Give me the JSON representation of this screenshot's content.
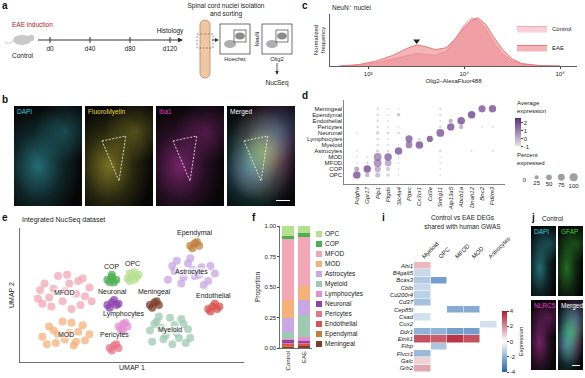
{
  "diagram": {
    "a": {
      "letter": "a",
      "arms": [
        "EAE induction",
        "Control"
      ],
      "timeline": [
        "d0",
        "d40",
        "d80",
        "d120"
      ],
      "endpoint": "Histology",
      "sorting_title": "Spinal cord nuclei isolation and sorting",
      "gates": [
        {
          "x_label": "Hoechst"
        },
        {
          "x_label": "Olig2",
          "y_label": "NeuN"
        }
      ],
      "output": "NucSeq"
    },
    "b": {
      "letter": "b",
      "channels": [
        {
          "label": "DAPI",
          "color": "#3fd0e0"
        },
        {
          "label": "FluoroMyelin",
          "color": "#e6dc3c"
        },
        {
          "label": "Iba1",
          "color": "#e040c8"
        },
        {
          "label": "Merged",
          "color": "#ffffff"
        }
      ]
    },
    "j": {
      "letter": "j",
      "condition": "Control",
      "channels": [
        {
          "label": "DAPI",
          "color": "#3fd0e0"
        },
        {
          "label": "GFAP",
          "color": "#40d040"
        },
        {
          "label": "NLRC5",
          "color": "#e040c8"
        },
        {
          "label": "Merged",
          "color": "#ffffff"
        }
      ]
    }
  },
  "chart_data": [
    {
      "panel": "c",
      "type": "area",
      "title": "NeuN⁻ nuclei",
      "x_label": "Olig2–AlexaFluor488",
      "y_label": "Normalized frequency",
      "log": "x",
      "tick_labels": "x",
      "legend": "top-right",
      "x": [
        500,
        800,
        1200,
        1800,
        2500,
        3200,
        4000,
        5000,
        6500,
        8000,
        10000,
        12000,
        14000,
        17000,
        20000,
        25000,
        32000,
        40000,
        60000,
        100000
      ],
      "series": [
        {
          "name": "Control",
          "color": "#f4a9b8",
          "values": [
            0,
            2,
            6,
            14,
            22,
            26,
            24,
            22,
            30,
            55,
            85,
            100,
            95,
            75,
            50,
            25,
            10,
            4,
            1,
            0
          ]
        },
        {
          "name": "EAE",
          "color": "#e9787c",
          "values": [
            0,
            3,
            10,
            22,
            36,
            44,
            40,
            34,
            38,
            55,
            80,
            95,
            100,
            85,
            62,
            35,
            14,
            5,
            1,
            0
          ]
        }
      ],
      "xlim": [
        400,
        150000
      ],
      "xticks": [
        {
          "value": 1000,
          "label": "10³"
        },
        {
          "value": 10000,
          "label": "10⁴"
        },
        {
          "value": 100000,
          "label": "10⁵"
        }
      ],
      "ylim": [
        0,
        108
      ],
      "arrow_at": {
        "x": 3200,
        "y": 52
      }
    },
    {
      "panel": "d",
      "type": "dot",
      "color": "#5e2a84",
      "x": [
        "Pdgfra",
        "Gpr17",
        "Plp1",
        "Ptgds",
        "Slc4a4",
        "Ptprc",
        "Cx3cr1",
        "Cd3e",
        "Snhg11",
        "Atp13a5",
        "Abcb1a",
        "Dnah12",
        "Bnc2",
        "Pdlim3"
      ],
      "categories": [
        "OPC",
        "COP",
        "MFOD",
        "MOD",
        "Astrocytes",
        "Myeloid",
        "Lymphocytes",
        "Neuronal",
        "Pericytes",
        "Endothelial",
        "Ependymal",
        "Meningeal"
      ],
      "percent": [
        [
          90,
          30,
          40,
          20,
          5,
          0,
          0,
          0,
          5,
          0,
          0,
          0,
          0,
          0
        ],
        [
          40,
          85,
          60,
          30,
          5,
          0,
          0,
          0,
          5,
          0,
          0,
          0,
          0,
          0
        ],
        [
          5,
          10,
          95,
          70,
          5,
          0,
          0,
          0,
          5,
          0,
          0,
          0,
          0,
          0
        ],
        [
          5,
          5,
          95,
          90,
          5,
          0,
          0,
          0,
          5,
          0,
          0,
          0,
          0,
          0
        ],
        [
          5,
          0,
          20,
          10,
          90,
          0,
          0,
          0,
          10,
          0,
          0,
          5,
          0,
          5
        ],
        [
          0,
          0,
          10,
          5,
          5,
          70,
          90,
          0,
          0,
          0,
          0,
          0,
          0,
          0
        ],
        [
          0,
          0,
          10,
          5,
          0,
          80,
          10,
          60,
          0,
          0,
          0,
          0,
          0,
          0
        ],
        [
          5,
          0,
          20,
          10,
          10,
          0,
          0,
          0,
          95,
          0,
          0,
          0,
          0,
          0
        ],
        [
          0,
          0,
          10,
          5,
          5,
          0,
          0,
          0,
          10,
          85,
          30,
          0,
          5,
          5
        ],
        [
          0,
          0,
          10,
          5,
          0,
          0,
          0,
          0,
          5,
          30,
          90,
          0,
          0,
          0
        ],
        [
          0,
          0,
          10,
          5,
          20,
          0,
          0,
          0,
          10,
          0,
          0,
          90,
          0,
          0
        ],
        [
          0,
          0,
          10,
          5,
          5,
          0,
          0,
          0,
          10,
          0,
          0,
          0,
          80,
          85
        ]
      ],
      "average": [
        [
          2.3,
          0.4,
          0.2,
          -0.3,
          -0.5,
          -0.6,
          -0.6,
          -0.6,
          -0.5,
          -0.6,
          -0.6,
          -0.6,
          -0.6,
          -0.6
        ],
        [
          0.8,
          2.4,
          0.5,
          -0.2,
          -0.5,
          -0.6,
          -0.6,
          -0.6,
          -0.5,
          -0.6,
          -0.6,
          -0.6,
          -0.6,
          -0.6
        ],
        [
          -0.5,
          -0.3,
          1.2,
          0.6,
          -0.5,
          -0.6,
          -0.6,
          -0.6,
          -0.5,
          -0.6,
          -0.6,
          -0.6,
          -0.6,
          -0.6
        ],
        [
          -0.5,
          -0.5,
          1.3,
          1.9,
          -0.5,
          -0.6,
          -0.6,
          -0.6,
          -0.5,
          -0.6,
          -0.6,
          -0.6,
          -0.6,
          -0.6
        ],
        [
          -0.5,
          -0.6,
          -0.4,
          -0.4,
          2.2,
          -0.6,
          -0.6,
          -0.6,
          -0.4,
          -0.6,
          -0.6,
          -0.4,
          -0.6,
          -0.4
        ],
        [
          -0.6,
          -0.6,
          -0.5,
          -0.5,
          -0.5,
          1.6,
          2.3,
          -0.6,
          -0.6,
          -0.6,
          -0.6,
          -0.6,
          -0.6,
          -0.6
        ],
        [
          -0.6,
          -0.6,
          -0.5,
          -0.5,
          -0.6,
          2.0,
          -0.2,
          2.4,
          -0.6,
          -0.6,
          -0.6,
          -0.6,
          -0.6,
          -0.6
        ],
        [
          -0.5,
          -0.6,
          -0.4,
          -0.4,
          -0.4,
          -0.6,
          -0.6,
          -0.6,
          2.2,
          -0.6,
          -0.6,
          -0.6,
          -0.6,
          -0.6
        ],
        [
          -0.6,
          -0.6,
          -0.5,
          -0.5,
          -0.5,
          -0.6,
          -0.6,
          -0.6,
          -0.4,
          2.3,
          0.5,
          -0.6,
          -0.5,
          -0.4
        ],
        [
          -0.6,
          -0.6,
          -0.5,
          -0.5,
          -0.6,
          -0.6,
          -0.6,
          -0.6,
          -0.5,
          0.6,
          2.4,
          -0.6,
          -0.6,
          -0.6
        ],
        [
          -0.6,
          -0.6,
          -0.5,
          -0.5,
          0.0,
          -0.6,
          -0.6,
          -0.6,
          -0.4,
          -0.6,
          -0.6,
          2.5,
          -0.6,
          -0.6
        ],
        [
          -0.6,
          -0.6,
          -0.5,
          -0.5,
          -0.5,
          -0.6,
          -0.6,
          -0.6,
          -0.4,
          -0.6,
          -0.6,
          -0.6,
          2.2,
          2.3
        ]
      ],
      "colorbar": {
        "title": "Average expression",
        "range": [
          -1,
          2.5
        ],
        "ticks": [
          -1,
          0,
          1,
          2
        ]
      },
      "size_legend": {
        "title": "Percent expressed",
        "values": [
          0,
          25,
          50,
          75,
          100
        ]
      }
    },
    {
      "panel": "e",
      "type": "scatter",
      "title": "Integrated NucSeq dataset",
      "x_label": "UMAP 1",
      "y_label": "UMAP 2",
      "tick_labels": false,
      "xlim": [
        0,
        10
      ],
      "ylim": [
        0,
        10.6
      ],
      "series": [
        {
          "name": "MFOD",
          "color": "#f3a6b5",
          "x": [
            0.8,
            1.1,
            1.4,
            1.7,
            2.0,
            2.3,
            2.6,
            2.9,
            3.2,
            1.0,
            1.5,
            2.1,
            2.7,
            3.1,
            1.3,
            1.9,
            2.5,
            0.9,
            2.2,
            2.8
          ],
          "y": [
            5.0,
            6.2,
            4.4,
            6.8,
            5.6,
            4.2,
            6.4,
            5.2,
            4.8,
            4.6,
            5.8,
            6.9,
            4.5,
            5.9,
            5.1,
            4.8,
            5.4,
            5.7,
            6.2,
            6.6
          ]
        },
        {
          "name": "MOD",
          "color": "#f6b07a",
          "x": [
            1.0,
            1.3,
            1.6,
            1.9,
            2.2,
            2.5,
            2.8,
            3.1,
            1.2,
            1.7,
            2.3,
            2.9,
            1.5,
            2.0,
            2.6,
            2.4
          ],
          "y": [
            2.0,
            2.8,
            1.5,
            3.2,
            2.3,
            1.6,
            2.9,
            2.2,
            1.4,
            2.2,
            3.1,
            1.7,
            2.5,
            1.8,
            2.4,
            1.3
          ]
        },
        {
          "name": "COP",
          "color": "#4caf50",
          "x": [
            3.9,
            4.1,
            4.3,
            4.0,
            4.2,
            4.1
          ],
          "y": [
            6.5,
            6.7,
            6.5,
            6.3,
            6.3,
            6.9
          ]
        },
        {
          "name": "OPC",
          "color": "#b5e08f",
          "x": [
            4.8,
            5.0,
            5.2,
            4.9,
            5.1,
            5.3,
            4.9,
            5.1
          ],
          "y": [
            6.6,
            6.8,
            6.7,
            6.4,
            6.5,
            6.9,
            7.0,
            7.1
          ]
        },
        {
          "name": "Astrocytes",
          "color": "#c9a6e4",
          "x": [
            6.6,
            6.9,
            7.2,
            7.5,
            7.8,
            8.1,
            8.4,
            8.7,
            6.8,
            7.3,
            7.7,
            8.2,
            8.5,
            7.0,
            7.6,
            8.0
          ],
          "y": [
            6.5,
            7.2,
            6.2,
            7.8,
            6.8,
            7.5,
            6.4,
            7.0,
            7.6,
            6.7,
            7.3,
            6.1,
            7.6,
            8.0,
            8.2,
            6.9
          ]
        },
        {
          "name": "Ependymal",
          "color": "#c0803e",
          "x": [
            7.6,
            7.8,
            8.0,
            7.7,
            7.9
          ],
          "y": [
            9.2,
            9.4,
            9.2,
            9.0,
            9.5
          ]
        },
        {
          "name": "Neuronal",
          "color": "#8e44ad",
          "x": [
            3.9,
            4.1,
            4.3,
            4.0,
            4.2,
            4.4
          ],
          "y": [
            4.5,
            4.7,
            4.5,
            4.3,
            4.9,
            4.6
          ]
        },
        {
          "name": "Meningeal",
          "color": "#7b3f2a",
          "x": [
            5.8,
            6.0,
            6.2,
            5.9,
            6.1
          ],
          "y": [
            4.5,
            4.7,
            4.5,
            4.3,
            4.8
          ]
        },
        {
          "name": "Endothelial",
          "color": "#d9534f",
          "x": [
            8.4,
            8.6,
            8.8,
            8.5,
            8.7,
            8.9
          ],
          "y": [
            4.2,
            4.4,
            4.2,
            4.0,
            4.6,
            4.4
          ]
        },
        {
          "name": "Lymphocytes",
          "color": "#e58fd0",
          "x": [
            4.4,
            4.6,
            4.8,
            4.5,
            4.7,
            4.6
          ],
          "y": [
            2.8,
            3.0,
            2.8,
            2.6,
            3.1,
            2.5
          ]
        },
        {
          "name": "Myeloid",
          "color": "#9fc9b3",
          "x": [
            5.8,
            6.1,
            6.4,
            6.7,
            7.0,
            7.3,
            7.6,
            5.9,
            6.3,
            6.8,
            7.2,
            7.5,
            6.0,
            6.5,
            6.9,
            7.4,
            6.2,
            7.1
          ],
          "y": [
            2.5,
            3.2,
            1.8,
            3.5,
            2.3,
            3.0,
            1.9,
            1.6,
            2.7,
            1.4,
            3.4,
            2.6,
            3.0,
            2.1,
            2.9,
            1.5,
            3.6,
            1.9
          ]
        },
        {
          "name": "Pericytes",
          "color": "#e8768a",
          "x": [
            4.0,
            4.2,
            4.4,
            4.1,
            4.3
          ],
          "y": [
            1.1,
            1.3,
            1.1,
            0.9,
            1.4
          ]
        }
      ]
    },
    {
      "panel": "f",
      "type": "bar",
      "stacked": true,
      "y_label": "Proportion",
      "legend": "right",
      "categories": [
        "Control",
        "EAE"
      ],
      "ylim": [
        0,
        1
      ],
      "yticks": [
        {
          "value": 0,
          "label": "0.00"
        },
        {
          "value": 0.25,
          "label": "0.25"
        },
        {
          "value": 0.5,
          "label": "0.50"
        },
        {
          "value": 0.75,
          "label": "0.75"
        },
        {
          "value": 1,
          "label": "1.00"
        }
      ],
      "series": [
        {
          "name": "OPC",
          "color": "#b5e08f",
          "values": [
            0.08,
            0.06
          ]
        },
        {
          "name": "COP",
          "color": "#4caf50",
          "values": [
            0.03,
            0.03
          ]
        },
        {
          "name": "MFOD",
          "color": "#f3a6b5",
          "values": [
            0.5,
            0.4
          ]
        },
        {
          "name": "MOD",
          "color": "#f6b07a",
          "values": [
            0.14,
            0.12
          ]
        },
        {
          "name": "Astrocytes",
          "color": "#c9a6e4",
          "values": [
            0.12,
            0.12
          ]
        },
        {
          "name": "Myeloid",
          "color": "#9fc9b3",
          "values": [
            0.06,
            0.18
          ]
        },
        {
          "name": "Lymphocytes",
          "color": "#e58fd0",
          "values": [
            0.005,
            0.03
          ]
        },
        {
          "name": "Neuronal",
          "color": "#8e44ad",
          "values": [
            0.02,
            0.015
          ]
        },
        {
          "name": "Pericytes",
          "color": "#e8768a",
          "values": [
            0.01,
            0.01
          ]
        },
        {
          "name": "Endothelial",
          "color": "#d9534f",
          "values": [
            0.015,
            0.015
          ]
        },
        {
          "name": "Ependymal",
          "color": "#c0803e",
          "values": [
            0.01,
            0.005
          ]
        },
        {
          "name": "Meningeal",
          "color": "#7b3f2a",
          "values": [
            0.01,
            0.015
          ]
        }
      ]
    },
    {
      "panel": "i",
      "type": "heatmap",
      "title": "Control vs EAE DEGs shared with human GWAS",
      "x": [
        "Myeloid",
        "OPC",
        "MFOD",
        "MOD",
        "Astrocytes"
      ],
      "y": [
        "Ahi1",
        "B4galt5",
        "Bcas3",
        "Cblb",
        "Cd200r4",
        "Cd37",
        "Cep85l",
        "Csad",
        "Cux2",
        "Ddr1",
        "Etnk1",
        "Fibp",
        "Flvcr1",
        "Galc",
        "Grb2"
      ],
      "values": [
        [
          1.2,
          0,
          0,
          0,
          0
        ],
        [
          -1.0,
          0,
          0,
          0,
          0
        ],
        [
          -1.4,
          -2.5,
          0,
          0,
          0
        ],
        [
          -1.0,
          0,
          0,
          0,
          0
        ],
        [
          -1.2,
          0,
          0,
          0,
          0
        ],
        [
          -1.6,
          0,
          0,
          0,
          0
        ],
        [
          0,
          0,
          -2.2,
          -2.2,
          0
        ],
        [
          -0.8,
          0,
          0,
          0,
          0
        ],
        [
          0,
          0,
          0,
          0,
          -0.8
        ],
        [
          -2.0,
          -2.0,
          -2.5,
          -2.5,
          0
        ],
        [
          3.0,
          2.8,
          3.5,
          3.0,
          0
        ],
        [
          0,
          -1.5,
          0,
          0,
          0
        ],
        [
          -1.8,
          0,
          0,
          0,
          0
        ],
        [
          0.8,
          0,
          0,
          0,
          0
        ],
        [
          1.5,
          0,
          0,
          0,
          0
        ]
      ],
      "colorbar": {
        "title": "Expression",
        "range": [
          -4,
          4
        ],
        "ticks": [
          -4,
          -2,
          0,
          2,
          4
        ]
      }
    }
  ]
}
